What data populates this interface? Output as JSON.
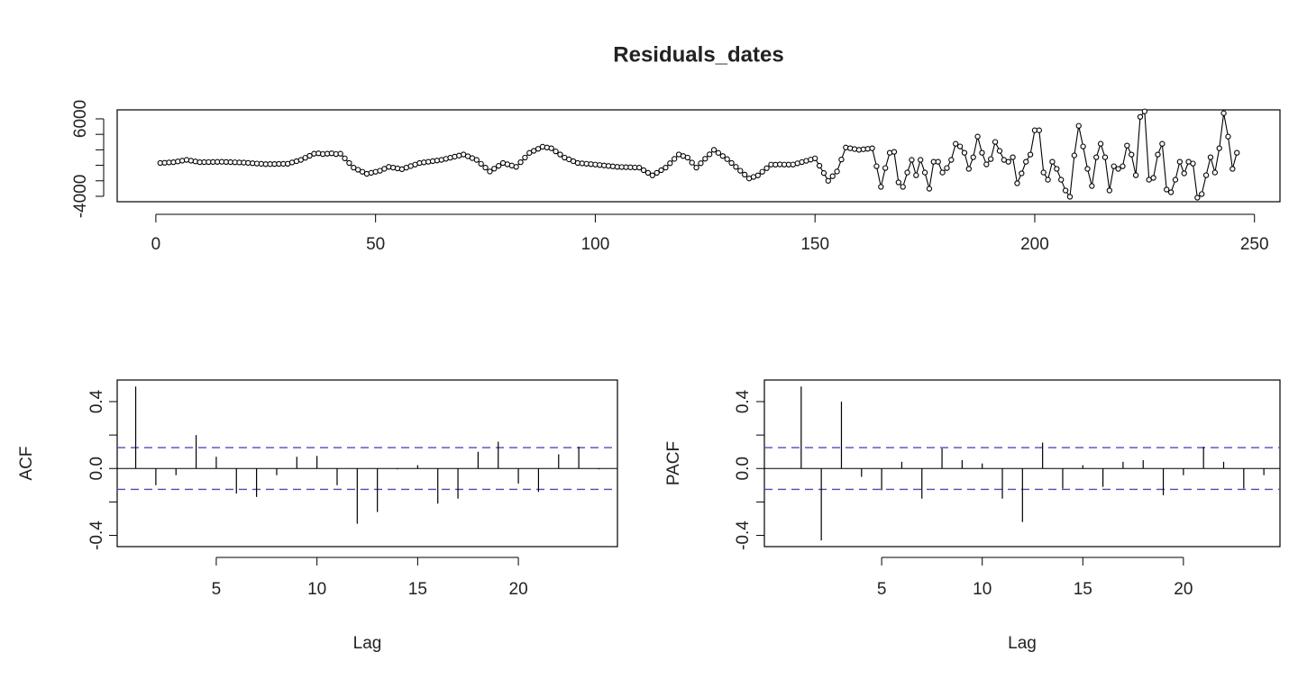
{
  "chart_data": [
    {
      "type": "line",
      "title": "Residuals_dates",
      "color": "#000000",
      "markers": true,
      "x": [
        1,
        2,
        3,
        4,
        5,
        6,
        7,
        8,
        9,
        10,
        11,
        12,
        13,
        14,
        15,
        16,
        17,
        18,
        19,
        20,
        21,
        22,
        23,
        24,
        25,
        26,
        27,
        28,
        29,
        30,
        31,
        32,
        33,
        34,
        35,
        36,
        37,
        38,
        39,
        40,
        41,
        42,
        43,
        44,
        45,
        46,
        47,
        48,
        49,
        50,
        51,
        52,
        53,
        54,
        55,
        56,
        57,
        58,
        59,
        60,
        61,
        62,
        63,
        64,
        65,
        66,
        67,
        68,
        69,
        70,
        71,
        72,
        73,
        74,
        75,
        76,
        77,
        78,
        79,
        80,
        81,
        82,
        83,
        84,
        85,
        86,
        87,
        88,
        89,
        90,
        91,
        92,
        93,
        94,
        95,
        96,
        97,
        98,
        99,
        100,
        101,
        102,
        103,
        104,
        105,
        106,
        107,
        108,
        109,
        110,
        111,
        112,
        113,
        114,
        115,
        116,
        117,
        118,
        119,
        120,
        121,
        122,
        123,
        124,
        125,
        126,
        127,
        128,
        129,
        130,
        131,
        132,
        133,
        134,
        135,
        136,
        137,
        138,
        139,
        140,
        141,
        142,
        143,
        144,
        145,
        146,
        147,
        148,
        149,
        150,
        151,
        152,
        153,
        154,
        155,
        156,
        157,
        158,
        159,
        160,
        161,
        162,
        163,
        164,
        165,
        166,
        167,
        168,
        169,
        170,
        171,
        172,
        173,
        174,
        175,
        176,
        177,
        178,
        179,
        180,
        181,
        182,
        183,
        184,
        185,
        186,
        187,
        188,
        189,
        190,
        191,
        192,
        193,
        194,
        195,
        196,
        197,
        198,
        199,
        200,
        201,
        202,
        203,
        204,
        205,
        206,
        207,
        208,
        209,
        210,
        211,
        212,
        213,
        214,
        215,
        216,
        217,
        218,
        219,
        220,
        221,
        222,
        223,
        224,
        225,
        226,
        227,
        228,
        229,
        230,
        231,
        232,
        233,
        234,
        235,
        236,
        237,
        238,
        239,
        240,
        241,
        242,
        243,
        244,
        245,
        246
      ],
      "values": [
        300,
        330,
        370,
        400,
        500,
        600,
        700,
        600,
        500,
        400,
        410,
        420,
        430,
        440,
        450,
        430,
        410,
        390,
        370,
        350,
        310,
        270,
        230,
        190,
        150,
        160,
        170,
        180,
        190,
        200,
        370,
        530,
        700,
        970,
        1230,
        1500,
        1550,
        1450,
        1500,
        1550,
        1450,
        1500,
        900,
        300,
        -300,
        -570,
        -830,
        -1100,
        -970,
        -830,
        -700,
        -450,
        -200,
        -300,
        -400,
        -500,
        -300,
        -100,
        100,
        300,
        380,
        460,
        540,
        620,
        700,
        840,
        980,
        1120,
        1260,
        1400,
        1170,
        930,
        700,
        200,
        -300,
        -800,
        -430,
        -70,
        300,
        130,
        -30,
        -200,
        400,
        1000,
        1600,
        1870,
        2130,
        2400,
        2300,
        2200,
        1800,
        1400,
        1000,
        770,
        530,
        300,
        250,
        200,
        150,
        100,
        40,
        -20,
        -80,
        -140,
        -200,
        -220,
        -240,
        -260,
        -280,
        -300,
        -630,
        -970,
        -1300,
        -970,
        -630,
        -300,
        270,
        830,
        1400,
        1200,
        1000,
        350,
        -300,
        270,
        850,
        1420,
        2000,
        1600,
        1200,
        800,
        300,
        -200,
        -700,
        -1200,
        -1700,
        -1500,
        -1300,
        -830,
        -370,
        100,
        80,
        120,
        100,
        90,
        100,
        260,
        420,
        580,
        740,
        900,
        -50,
        -1000,
        -2000,
        -1400,
        -800,
        750,
        2300,
        2200,
        2100,
        2000,
        2070,
        2130,
        2200,
        -120,
        -2780,
        -350,
        1620,
        1740,
        -2200,
        -2780,
        -930,
        700,
        -1280,
        700,
        -930,
        -3020,
        460,
        460,
        -930,
        -350,
        700,
        2780,
        2440,
        1620,
        -460,
        1040,
        3710,
        1620,
        120,
        810,
        3020,
        1860,
        700,
        460,
        1040,
        -2320,
        -1040,
        460,
        1390,
        4520,
        4520,
        -930,
        -1860,
        460,
        -460,
        -1860,
        -3250,
        -4060,
        1280,
        5100,
        2440,
        -460,
        -2670,
        1040,
        2780,
        1040,
        -3250,
        -120,
        -460,
        -120,
        2550,
        1390,
        -1280,
        6260,
        6960,
        -1860,
        -1620,
        1390,
        2780,
        -3130,
        -3480,
        -1860,
        460,
        -1040,
        460,
        230,
        -4180,
        -3710,
        -1280,
        1040,
        -930,
        2200,
        6730,
        3710,
        -460,
        1620
      ],
      "xlim": [
        -8.8,
        255.8
      ],
      "xticks": [
        0,
        50,
        100,
        150,
        200,
        250
      ],
      "ylim": [
        -4700,
        7160
      ],
      "yticks": [
        -4000,
        -2000,
        0,
        2000,
        4000,
        6000
      ]
    },
    {
      "type": "stem",
      "color": "#000000",
      "xlabel": "Lag",
      "ylabel": "ACF",
      "x": [
        1,
        2,
        3,
        4,
        5,
        6,
        7,
        8,
        9,
        10,
        11,
        12,
        13,
        14,
        15,
        16,
        17,
        18,
        19,
        20,
        21,
        22,
        23,
        24
      ],
      "values": [
        0.49,
        -0.1,
        -0.04,
        0.2,
        0.07,
        -0.15,
        -0.17,
        -0.04,
        0.07,
        0.075,
        -0.1,
        -0.33,
        -0.26,
        -0.005,
        0.02,
        -0.21,
        -0.18,
        0.1,
        0.16,
        -0.09,
        -0.14,
        0.085,
        0.13,
        -0.005
      ],
      "hlines": [
        0.125,
        -0.125
      ],
      "hline_color": "#4d4db3",
      "xlim": [
        0.08,
        24.92
      ],
      "xticks": [
        5,
        10,
        15,
        20
      ],
      "ylim": [
        -0.467,
        0.529
      ],
      "yticks": [
        -0.4,
        -0.2,
        {
          "value": 0,
          "label": "0.0"
        },
        0.2,
        0.4
      ]
    },
    {
      "type": "stem",
      "color": "#000000",
      "xlabel": "Lag",
      "ylabel": "PACF",
      "x": [
        1,
        2,
        3,
        4,
        5,
        6,
        7,
        8,
        9,
        10,
        11,
        12,
        13,
        14,
        15,
        16,
        17,
        18,
        19,
        20,
        21,
        22,
        23,
        24
      ],
      "values": [
        0.49,
        -0.43,
        0.4,
        -0.05,
        -0.13,
        0.04,
        -0.18,
        0.12,
        0.05,
        0.03,
        -0.18,
        -0.32,
        0.155,
        -0.12,
        0.02,
        -0.11,
        0.04,
        0.05,
        -0.16,
        -0.04,
        0.13,
        0.04,
        -0.12,
        -0.04
      ],
      "hlines": [
        0.125,
        -0.125
      ],
      "hline_color": "#4d4db3",
      "xlim": [
        -0.83,
        24.8
      ],
      "xticks": [
        5,
        10,
        15,
        20
      ],
      "ylim": [
        -0.467,
        0.529
      ],
      "yticks": [
        -0.4,
        -0.2,
        {
          "value": 0,
          "label": "0.0"
        },
        0.2,
        0.4
      ]
    }
  ]
}
